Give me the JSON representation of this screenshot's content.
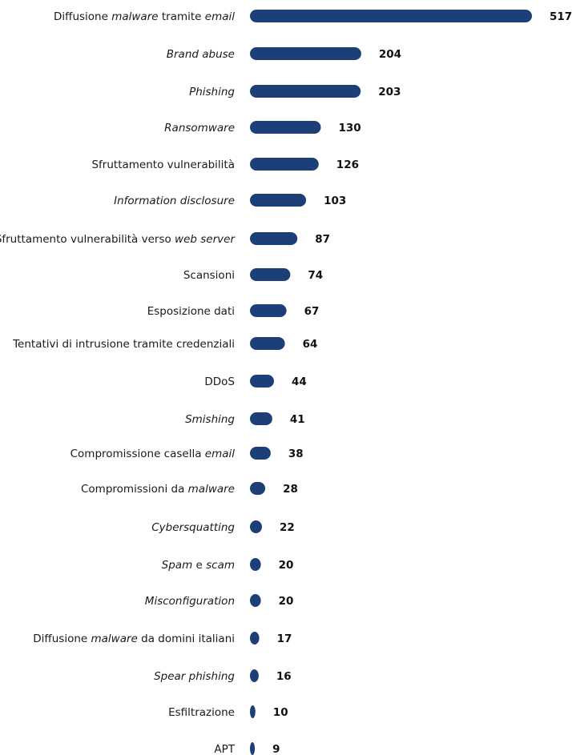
{
  "chart_data": {
    "type": "bar",
    "orientation": "horizontal",
    "title": "",
    "xlabel": "",
    "ylabel": "",
    "grid": false,
    "legend": "none",
    "bar_color": "#1c3f78",
    "categories": [
      "Diffusione malware tramite email",
      "Brand abuse",
      "Phishing",
      "Ransomware",
      "Sfruttamento vulnerabilità",
      "Information disclosure",
      "Sfruttamento vulnerabilità verso web server",
      "Scansioni",
      "Esposizione dati",
      "Tentativi di intrusione tramite credenziali",
      "DDoS",
      "Smishing",
      "Compromissione casella email",
      "Compromissioni da malware",
      "Cybersquatting",
      "Spam e scam",
      "Misconfiguration",
      "Diffusione malware da domini italiani",
      "Spear phishing",
      "Esfiltrazione",
      "APT"
    ],
    "category_parts": [
      [
        {
          "t": "Diffusione ",
          "i": false
        },
        {
          "t": "malware",
          "i": true
        },
        {
          "t": " tramite ",
          "i": false
        },
        {
          "t": "email",
          "i": true
        }
      ],
      [
        {
          "t": "Brand abuse",
          "i": true
        }
      ],
      [
        {
          "t": "Phishing",
          "i": true
        }
      ],
      [
        {
          "t": "Ransomware",
          "i": true
        }
      ],
      [
        {
          "t": "Sfruttamento vulnerabilità",
          "i": false
        }
      ],
      [
        {
          "t": "Information disclosure",
          "i": true
        }
      ],
      [
        {
          "t": "Sfruttamento vulnerabilità verso ",
          "i": false
        },
        {
          "t": "web server",
          "i": true
        }
      ],
      [
        {
          "t": "Scansioni",
          "i": false
        }
      ],
      [
        {
          "t": "Esposizione dati",
          "i": false
        }
      ],
      [
        {
          "t": "Tentativi di intrusione tramite credenziali",
          "i": false
        }
      ],
      [
        {
          "t": "DDoS",
          "i": false
        }
      ],
      [
        {
          "t": "Smishing",
          "i": true
        }
      ],
      [
        {
          "t": "Compromissione casella ",
          "i": false
        },
        {
          "t": "email",
          "i": true
        }
      ],
      [
        {
          "t": "Compromissioni da ",
          "i": false
        },
        {
          "t": "malware",
          "i": true
        }
      ],
      [
        {
          "t": "Cybersquatting",
          "i": true
        }
      ],
      [
        {
          "t": "Spam",
          "i": true
        },
        {
          "t": " e ",
          "i": false
        },
        {
          "t": "scam",
          "i": true
        }
      ],
      [
        {
          "t": "Misconfiguration",
          "i": true
        }
      ],
      [
        {
          "t": "Diffusione ",
          "i": false
        },
        {
          "t": "malware",
          "i": true
        },
        {
          "t": " da domini italiani",
          "i": false
        }
      ],
      [
        {
          "t": "Spear phishing",
          "i": true
        }
      ],
      [
        {
          "t": "Esfiltrazione",
          "i": false
        }
      ],
      [
        {
          "t": "APT",
          "i": false
        }
      ]
    ],
    "values": [
      517,
      204,
      203,
      130,
      126,
      103,
      87,
      74,
      67,
      64,
      44,
      41,
      38,
      28,
      22,
      20,
      20,
      17,
      16,
      10,
      9
    ],
    "xlim": [
      0,
      517
    ]
  }
}
